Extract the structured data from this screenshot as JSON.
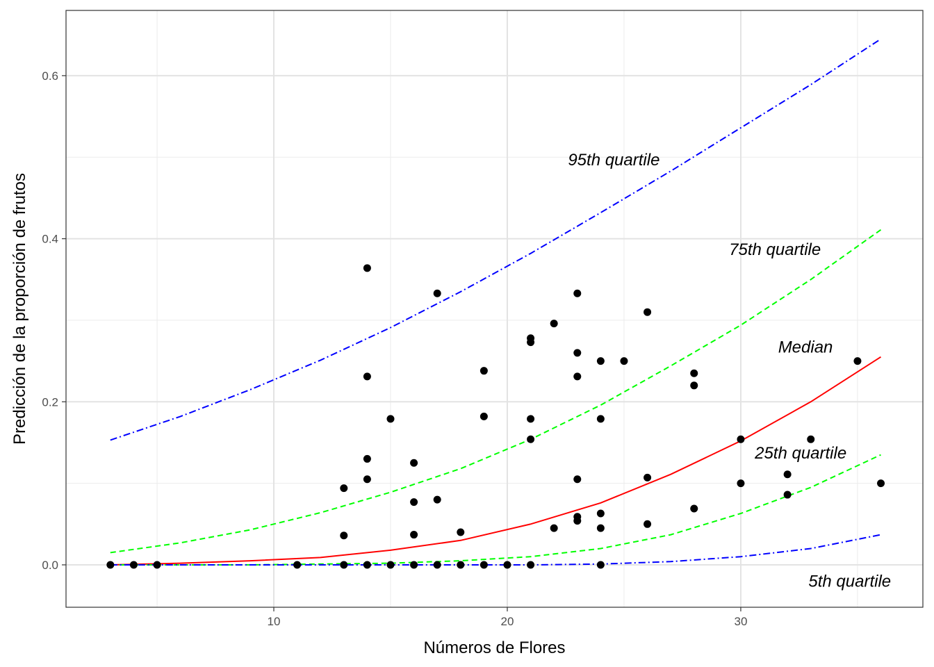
{
  "chart_data": {
    "type": "scatter",
    "xlabel": "Números de Flores",
    "ylabel": "Predicción de la proporción de frutos",
    "xlim": [
      1.1,
      37.8
    ],
    "ylim": [
      -0.052,
      0.68
    ],
    "x_ticks": [
      10,
      20,
      30
    ],
    "y_ticks": [
      0.0,
      0.2,
      0.4,
      0.6
    ],
    "x_tick_labels": [
      "10",
      "20",
      "30"
    ],
    "y_tick_labels": [
      "0.0",
      "0.2",
      "0.4",
      "0.6"
    ],
    "grid": true,
    "points": [
      {
        "x": 3,
        "y": 0.0
      },
      {
        "x": 4,
        "y": 0.0
      },
      {
        "x": 5,
        "y": 0.0
      },
      {
        "x": 11,
        "y": 0.0
      },
      {
        "x": 13,
        "y": 0.0
      },
      {
        "x": 13,
        "y": 0.036
      },
      {
        "x": 13,
        "y": 0.094
      },
      {
        "x": 14,
        "y": 0.0
      },
      {
        "x": 14,
        "y": 0.105
      },
      {
        "x": 14,
        "y": 0.13
      },
      {
        "x": 14,
        "y": 0.231
      },
      {
        "x": 14,
        "y": 0.364
      },
      {
        "x": 15,
        "y": 0.0
      },
      {
        "x": 15,
        "y": 0.179
      },
      {
        "x": 16,
        "y": 0.0
      },
      {
        "x": 16,
        "y": 0.037
      },
      {
        "x": 16,
        "y": 0.077
      },
      {
        "x": 16,
        "y": 0.125
      },
      {
        "x": 17,
        "y": 0.0
      },
      {
        "x": 17,
        "y": 0.08
      },
      {
        "x": 17,
        "y": 0.333
      },
      {
        "x": 18,
        "y": 0.0
      },
      {
        "x": 18,
        "y": 0.04
      },
      {
        "x": 19,
        "y": 0.0
      },
      {
        "x": 19,
        "y": 0.182
      },
      {
        "x": 19,
        "y": 0.238
      },
      {
        "x": 20,
        "y": 0.0
      },
      {
        "x": 21,
        "y": 0.0
      },
      {
        "x": 21,
        "y": 0.154
      },
      {
        "x": 21,
        "y": 0.179
      },
      {
        "x": 21,
        "y": 0.273
      },
      {
        "x": 21,
        "y": 0.278
      },
      {
        "x": 22,
        "y": 0.045
      },
      {
        "x": 22,
        "y": 0.296
      },
      {
        "x": 23,
        "y": 0.054
      },
      {
        "x": 23,
        "y": 0.059
      },
      {
        "x": 23,
        "y": 0.105
      },
      {
        "x": 23,
        "y": 0.231
      },
      {
        "x": 23,
        "y": 0.26
      },
      {
        "x": 23,
        "y": 0.333
      },
      {
        "x": 24,
        "y": 0.0
      },
      {
        "x": 24,
        "y": 0.045
      },
      {
        "x": 24,
        "y": 0.063
      },
      {
        "x": 24,
        "y": 0.179
      },
      {
        "x": 24,
        "y": 0.25
      },
      {
        "x": 25,
        "y": 0.25
      },
      {
        "x": 26,
        "y": 0.05
      },
      {
        "x": 26,
        "y": 0.107
      },
      {
        "x": 26,
        "y": 0.31
      },
      {
        "x": 28,
        "y": 0.069
      },
      {
        "x": 28,
        "y": 0.22
      },
      {
        "x": 28,
        "y": 0.235
      },
      {
        "x": 30,
        "y": 0.1
      },
      {
        "x": 30,
        "y": 0.154
      },
      {
        "x": 32,
        "y": 0.086
      },
      {
        "x": 32,
        "y": 0.111
      },
      {
        "x": 33,
        "y": 0.154
      },
      {
        "x": 35,
        "y": 0.25
      },
      {
        "x": 36,
        "y": 0.1
      }
    ],
    "series": [
      {
        "name": "95th quartile",
        "color": "#0000ff",
        "linestyle": "dashdot",
        "x": [
          3,
          6,
          9,
          12,
          15,
          18,
          21,
          24,
          27,
          30,
          33,
          36
        ],
        "y": [
          0.153,
          0.182,
          0.215,
          0.251,
          0.291,
          0.335,
          0.382,
          0.432,
          0.483,
          0.536,
          0.589,
          0.645
        ]
      },
      {
        "name": "75th quartile",
        "color": "#00ff00",
        "linestyle": "dashed",
        "x": [
          3,
          6,
          9,
          12,
          15,
          18,
          21,
          24,
          27,
          30,
          33,
          36
        ],
        "y": [
          0.015,
          0.027,
          0.043,
          0.064,
          0.089,
          0.118,
          0.154,
          0.196,
          0.244,
          0.294,
          0.35,
          0.411
        ]
      },
      {
        "name": "Median",
        "color": "#ff0000",
        "linestyle": "solid",
        "x": [
          3,
          6,
          9,
          12,
          15,
          18,
          21,
          24,
          27,
          30,
          33,
          36
        ],
        "y": [
          0.0,
          0.002,
          0.005,
          0.009,
          0.018,
          0.03,
          0.05,
          0.076,
          0.111,
          0.152,
          0.2,
          0.255
        ]
      },
      {
        "name": "25th quartile",
        "color": "#00ff00",
        "linestyle": "dashed",
        "x": [
          3,
          6,
          9,
          12,
          15,
          18,
          21,
          24,
          27,
          30,
          33,
          36
        ],
        "y": [
          0.0,
          0.0,
          0.0,
          0.001,
          0.002,
          0.005,
          0.01,
          0.02,
          0.037,
          0.063,
          0.095,
          0.135
        ]
      },
      {
        "name": "5th quartile",
        "color": "#0000ff",
        "linestyle": "dashdot",
        "x": [
          3,
          6,
          9,
          12,
          15,
          18,
          21,
          24,
          27,
          30,
          33,
          36
        ],
        "y": [
          0.0,
          0.0,
          0.0,
          0.0,
          0.0,
          0.0,
          0.0,
          0.001,
          0.004,
          0.01,
          0.02,
          0.037
        ]
      }
    ],
    "annotations": [
      {
        "text": "95th quartile",
        "x": 22.6,
        "y": 0.497
      },
      {
        "text": "75th quartile",
        "x": 29.5,
        "y": 0.387
      },
      {
        "text": "Median",
        "x": 31.6,
        "y": 0.267
      },
      {
        "text": "25th quartile",
        "x": 30.6,
        "y": 0.137
      },
      {
        "text": "5th quartile",
        "x": 32.9,
        "y": -0.02
      }
    ]
  }
}
